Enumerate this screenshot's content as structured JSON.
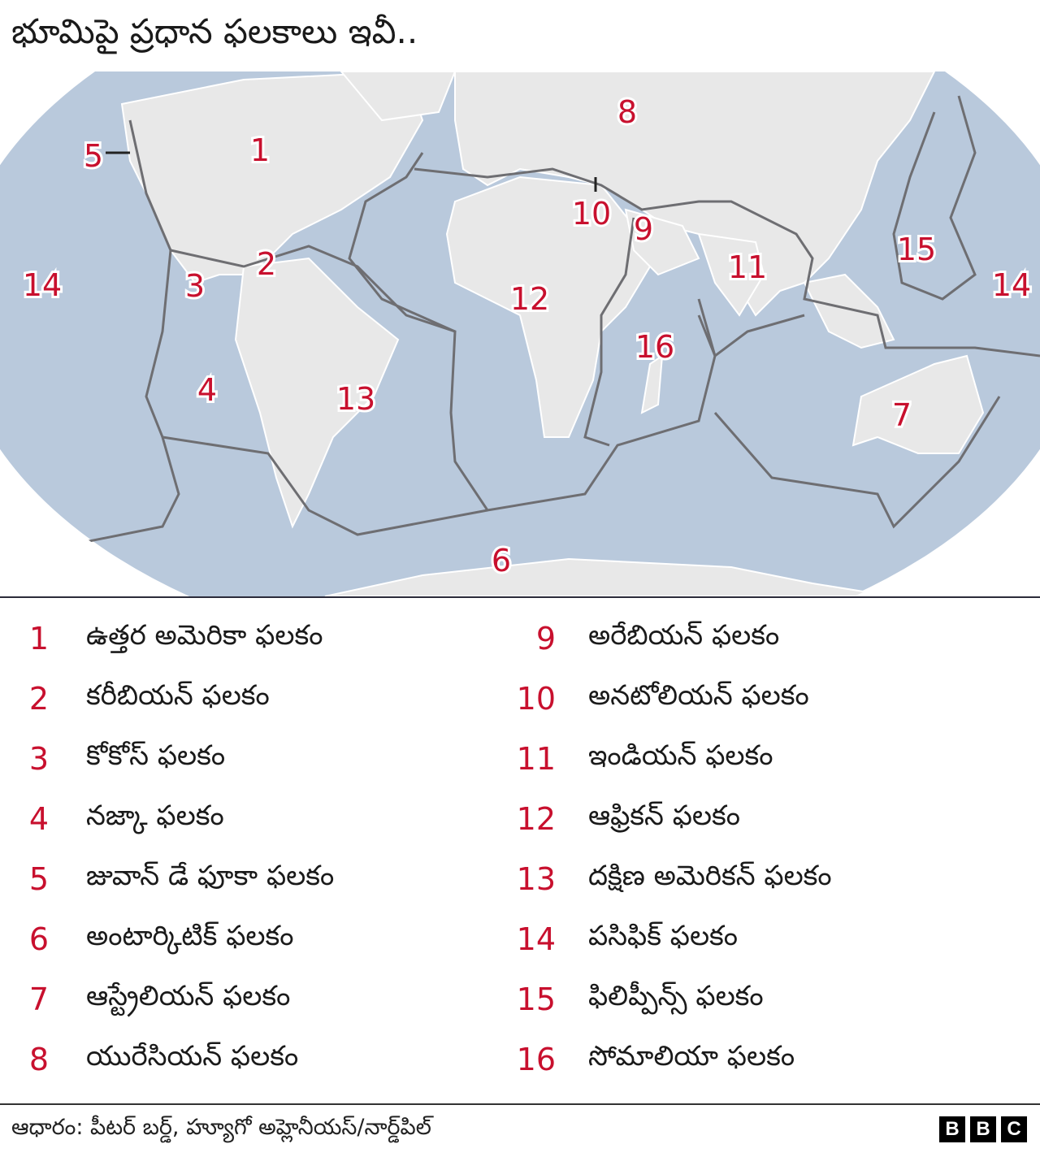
{
  "title": "భూమిపై ప్రధాన ఫలకాలు ఇవీ..",
  "colors": {
    "ocean": "#b9c9dc",
    "land": "#e8e8e8",
    "boundary": "#6e6e72",
    "label": "#c8102e"
  },
  "map_labels": [
    "1",
    "2",
    "3",
    "4",
    "5",
    "6",
    "7",
    "8",
    "9",
    "10",
    "11",
    "12",
    "13",
    "14",
    "15",
    "16"
  ],
  "legend": [
    {
      "num": "1",
      "name": "ఉత్తర అమెరికా ఫలకం"
    },
    {
      "num": "2",
      "name": "కరీబియన్ ఫలకం"
    },
    {
      "num": "3",
      "name": "కోకోస్ ఫలకం"
    },
    {
      "num": "4",
      "name": "నజ్కా ఫలకం"
    },
    {
      "num": "5",
      "name": "జువాన్ డే ఫూకా ఫలకం"
    },
    {
      "num": "6",
      "name": "అంటార్కిటిక్ ఫలకం"
    },
    {
      "num": "7",
      "name": "ఆస్ట్రేలియన్ ఫలకం"
    },
    {
      "num": "8",
      "name": "యురేసియన్ ఫలకం"
    },
    {
      "num": "9",
      "name": "అరేబియన్ ఫలకం"
    },
    {
      "num": "10",
      "name": "అనటోలియన్ ఫలకం"
    },
    {
      "num": "11",
      "name": "ఇండియన్ ఫలకం"
    },
    {
      "num": "12",
      "name": "ఆఫ్రికన్ ఫలకం"
    },
    {
      "num": "13",
      "name": "దక్షిణ అమెరికన్ ఫలకం"
    },
    {
      "num": "14",
      "name": "పసిఫిక్ ఫలకం"
    },
    {
      "num": "15",
      "name": "ఫిలిప్పీన్స్ ఫలకం"
    },
    {
      "num": "16",
      "name": "సోమాలియా ఫలకం"
    }
  ],
  "source": "ఆధారం: పీటర్ బర్డ్, హ్యూగో అహ్లెనీయస్/నార్డ్‌పిల్",
  "logo": "BBC"
}
